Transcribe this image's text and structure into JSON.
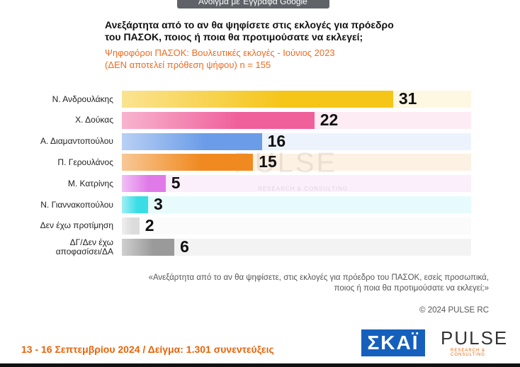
{
  "header": {
    "button": "Άνοιγμα με Έγγραφα Google"
  },
  "chart_data": {
    "type": "bar",
    "orientation": "horizontal",
    "title": [
      "Ανεξάρτητα από το αν θα ψηφίσετε στις εκλογές για πρόεδρο",
      "του ΠΑΣΟΚ, ποιος ή ποια θα προτιμούσατε να εκλεγεί;"
    ],
    "subtitle": [
      "Ψηφοφόροι ΠΑΣΟΚ: Βουλευτικές εκλογές - Ιούνιος 2023",
      "(ΔΕΝ αποτελεί πρόθεση ψήφου)   n = 155"
    ],
    "categories": [
      "Ν. Ανδρουλάκης",
      "Χ. Δούκας",
      "Α. Διαμαντοπούλου",
      "Π. Γερουλάνος",
      "Μ. Κατρίνης",
      "Ν. Γιαννακοπούλου",
      "Δεν έχω προτίμηση",
      "ΔΓ/Δεν έχω αποφασίσει/ΔΑ"
    ],
    "values": [
      31,
      22,
      16,
      15,
      5,
      3,
      2,
      6
    ],
    "colors": [
      "#f5c518",
      "#f0609a",
      "#6a9ce8",
      "#f08a20",
      "#e07ae8",
      "#38dde6",
      "#dcdcdc",
      "#9a9a9a"
    ]
  },
  "notes": {
    "question": [
      "«Ανεξάρτητα από το αν θα ψηφίσετε, στις εκλογές για πρόεδρο του ΠΑΣΟΚ, εσείς προσωπικά,",
      "ποιος ή ποια θα προτιμούσατε να εκλεγεί;»"
    ],
    "copyright": "© 2024 PULSE RC"
  },
  "footer": {
    "text": "13 - 16 Σεπτεμβρίου 2024  /  Δείγμα:  1.301 συνεντεύξεις",
    "skai": "ΣΚΑΪ",
    "pulse": "PULSE",
    "pulse_sub": "RESEARCH & CONSULTING"
  }
}
